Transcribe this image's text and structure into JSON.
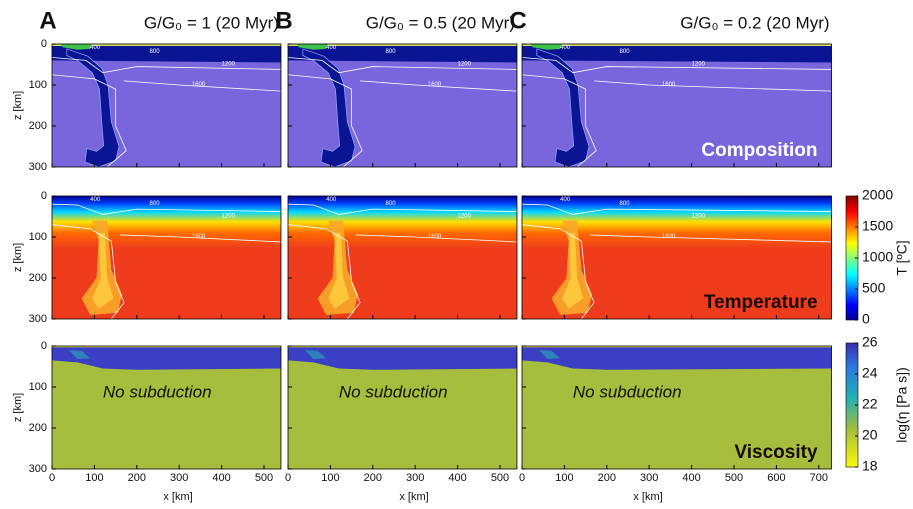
{
  "columns": [
    {
      "label": "A",
      "title": "G/G₀ = 1 (20 Myr)",
      "xlim": [
        0,
        540
      ],
      "xticks": [
        0,
        100,
        200,
        300,
        400,
        500
      ]
    },
    {
      "label": "B",
      "title": "G/G₀ = 0.5 (20 Myr)",
      "xlim": [
        0,
        540
      ],
      "xticks": [
        0,
        100,
        200,
        300,
        400,
        500
      ]
    },
    {
      "label": "C",
      "title": "G/G₀ = 0.2 (20 Myr)",
      "xlim": [
        0,
        730
      ],
      "xticks": [
        0,
        100,
        200,
        300,
        400,
        500,
        600,
        700
      ]
    }
  ],
  "rows": [
    {
      "ylabel": "z [km]",
      "name": "Composition"
    },
    {
      "ylabel": "z [km]",
      "name": "Temperature"
    },
    {
      "ylabel": "z [km]",
      "name": "Viscosity",
      "annotation": "No subduction"
    }
  ],
  "ylim": [
    0,
    300
  ],
  "yticks": [
    0,
    100,
    200,
    300
  ],
  "xlabel": "x [km]",
  "isotherms": [
    400,
    800,
    1200,
    1600
  ],
  "colorbars": [
    {
      "label": "T [ºC]",
      "lim": [
        0,
        2000
      ],
      "ticks": [
        0,
        500,
        1000,
        1500,
        2000
      ]
    },
    {
      "label": "log(η [Pa s])",
      "lim": [
        18,
        26
      ],
      "ticks": [
        18,
        20,
        22,
        24,
        26
      ]
    }
  ]
}
